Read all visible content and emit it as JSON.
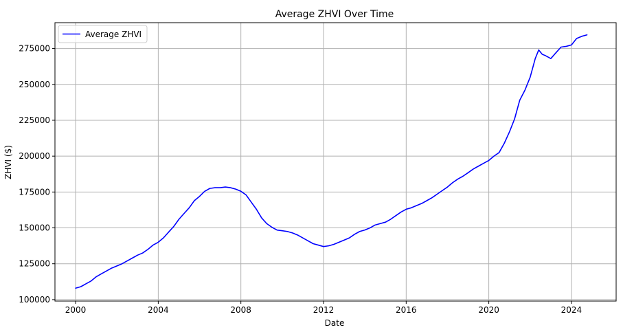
{
  "chart_data": {
    "type": "line",
    "title": "Average ZHVI Over Time",
    "xlabel": "Date",
    "ylabel": "ZHVI ($)",
    "xlim": [
      "1999-01-01",
      "2026-03-01"
    ],
    "ylim": [
      99000,
      293000
    ],
    "x_ticks": [
      {
        "date": "2000-01-01",
        "label": "2000"
      },
      {
        "date": "2004-01-01",
        "label": "2004"
      },
      {
        "date": "2008-01-01",
        "label": "2008"
      },
      {
        "date": "2012-01-01",
        "label": "2012"
      },
      {
        "date": "2016-01-01",
        "label": "2016"
      },
      {
        "date": "2020-01-01",
        "label": "2020"
      },
      {
        "date": "2024-01-01",
        "label": "2024"
      }
    ],
    "y_ticks": [
      {
        "value": 100000,
        "label": "100000"
      },
      {
        "value": 125000,
        "label": "125000"
      },
      {
        "value": 150000,
        "label": "150000"
      },
      {
        "value": 175000,
        "label": "175000"
      },
      {
        "value": 200000,
        "label": "200000"
      },
      {
        "value": 225000,
        "label": "225000"
      },
      {
        "value": 250000,
        "label": "250000"
      },
      {
        "value": 275000,
        "label": "275000"
      }
    ],
    "grid": true,
    "legend_position": "top-left",
    "series": [
      {
        "name": "Average ZHVI",
        "color": "#0000ff",
        "x": [
          "2000-01-01",
          "2000-04-01",
          "2000-07-01",
          "2000-10-01",
          "2001-01-01",
          "2001-04-01",
          "2001-07-01",
          "2001-10-01",
          "2002-01-01",
          "2002-04-01",
          "2002-07-01",
          "2002-10-01",
          "2003-01-01",
          "2003-04-01",
          "2003-07-01",
          "2003-10-01",
          "2004-01-01",
          "2004-04-01",
          "2004-07-01",
          "2004-10-01",
          "2005-01-01",
          "2005-04-01",
          "2005-07-01",
          "2005-10-01",
          "2006-01-01",
          "2006-04-01",
          "2006-07-01",
          "2006-10-01",
          "2007-01-01",
          "2007-04-01",
          "2007-07-01",
          "2007-10-01",
          "2008-01-01",
          "2008-04-01",
          "2008-07-01",
          "2008-10-01",
          "2009-01-01",
          "2009-04-01",
          "2009-07-01",
          "2009-10-01",
          "2010-01-01",
          "2010-04-01",
          "2010-07-01",
          "2010-10-01",
          "2011-01-01",
          "2011-04-01",
          "2011-07-01",
          "2011-10-01",
          "2012-01-01",
          "2012-04-01",
          "2012-07-01",
          "2012-10-01",
          "2013-01-01",
          "2013-04-01",
          "2013-07-01",
          "2013-10-01",
          "2014-01-01",
          "2014-04-01",
          "2014-07-01",
          "2014-10-01",
          "2015-01-01",
          "2015-04-01",
          "2015-07-01",
          "2015-10-01",
          "2016-01-01",
          "2016-04-01",
          "2016-07-01",
          "2016-10-01",
          "2017-01-01",
          "2017-04-01",
          "2017-07-01",
          "2017-10-01",
          "2018-01-01",
          "2018-04-01",
          "2018-07-01",
          "2018-10-01",
          "2019-01-01",
          "2019-04-01",
          "2019-07-01",
          "2019-10-01",
          "2020-01-01",
          "2020-04-01",
          "2020-07-01",
          "2020-10-01",
          "2021-01-01",
          "2021-04-01",
          "2021-07-01",
          "2021-10-01",
          "2022-01-01",
          "2022-04-01",
          "2022-06-01",
          "2022-08-01",
          "2022-10-01",
          "2023-01-01",
          "2023-04-01",
          "2023-07-01",
          "2023-10-01",
          "2024-01-01",
          "2024-04-01",
          "2024-07-01",
          "2024-10-01"
        ],
        "values": [
          108000,
          109000,
          111000,
          113000,
          116000,
          118000,
          120000,
          122000,
          123500,
          125000,
          127000,
          129000,
          131000,
          132500,
          135000,
          138000,
          140000,
          143000,
          147000,
          151000,
          156000,
          160000,
          164000,
          169000,
          172000,
          175500,
          177500,
          178000,
          178000,
          178500,
          178000,
          177000,
          175500,
          173000,
          168000,
          163000,
          157000,
          153000,
          150500,
          148500,
          148000,
          147500,
          146500,
          145000,
          143000,
          141000,
          139000,
          138000,
          137000,
          137500,
          138500,
          140000,
          141500,
          143000,
          145500,
          147500,
          148500,
          150000,
          152000,
          153000,
          154000,
          156000,
          158500,
          161000,
          163000,
          164000,
          165500,
          167000,
          169000,
          171000,
          173500,
          176000,
          178500,
          181500,
          184000,
          186000,
          188500,
          191000,
          193000,
          195000,
          197000,
          200000,
          202500,
          209000,
          217000,
          226000,
          239000,
          246000,
          255000,
          268000,
          274000,
          271000,
          270000,
          268000,
          272000,
          276000,
          276500,
          277500,
          282000,
          283500,
          284500
        ]
      }
    ]
  }
}
